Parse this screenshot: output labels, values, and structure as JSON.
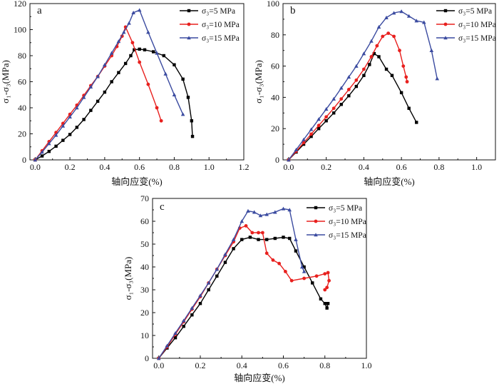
{
  "chart_data": [
    {
      "type": "line",
      "panel_label": "a",
      "xlabel": "轴向应变(%)",
      "ylabel": "σ₁-σ₃(MPa)",
      "xlim": [
        -0.03,
        1.2
      ],
      "ylim": [
        0,
        120
      ],
      "xticks": [
        "0.0",
        "0.2",
        "0.4",
        "0.6",
        "0.8",
        "1.0",
        "1.2"
      ],
      "xtick_values": [
        0,
        0.2,
        0.4,
        0.6,
        0.8,
        1.0,
        1.2
      ],
      "yticks": [
        "0",
        "20",
        "40",
        "60",
        "80",
        "100",
        "120"
      ],
      "ytick_values": [
        0,
        20,
        40,
        60,
        80,
        100,
        120
      ],
      "legend_position": "top-right",
      "series": [
        {
          "name": "σ₃=5 MPa",
          "color": "#000000",
          "marker": "square",
          "x": [
            0.0,
            0.04,
            0.08,
            0.12,
            0.16,
            0.2,
            0.24,
            0.28,
            0.32,
            0.36,
            0.4,
            0.44,
            0.48,
            0.52,
            0.55,
            0.57,
            0.6,
            0.63,
            0.68,
            0.74,
            0.8,
            0.85,
            0.88,
            0.9,
            0.905
          ],
          "y": [
            0,
            3,
            6.5,
            10.5,
            15,
            19.5,
            25,
            31,
            38,
            45,
            52,
            60,
            67,
            74,
            80,
            84.5,
            85,
            84.5,
            83,
            80,
            73,
            62,
            48,
            30,
            18
          ]
        },
        {
          "name": "σ₃=10 MPa",
          "color": "#e8201e",
          "marker": "circle",
          "x": [
            0.0,
            0.04,
            0.08,
            0.12,
            0.16,
            0.2,
            0.24,
            0.28,
            0.32,
            0.36,
            0.4,
            0.44,
            0.47,
            0.5,
            0.52,
            0.56,
            0.6,
            0.65,
            0.7,
            0.725
          ],
          "y": [
            0,
            7,
            14,
            21,
            28,
            35,
            42,
            49.5,
            57,
            64,
            72,
            80,
            87,
            95,
            102,
            90,
            75,
            58,
            40,
            30
          ]
        },
        {
          "name": "σ₃=15 MPa",
          "color": "#3b4ba0",
          "marker": "triangle",
          "x": [
            0.0,
            0.04,
            0.08,
            0.12,
            0.16,
            0.2,
            0.24,
            0.28,
            0.32,
            0.36,
            0.4,
            0.44,
            0.48,
            0.51,
            0.54,
            0.565,
            0.6,
            0.65,
            0.7,
            0.75,
            0.8,
            0.85
          ],
          "y": [
            0,
            6,
            12.5,
            19,
            26,
            33,
            40,
            48,
            56,
            64,
            73,
            82,
            91,
            98,
            105,
            113,
            115,
            98,
            82,
            66,
            50,
            35
          ]
        }
      ]
    },
    {
      "type": "line",
      "panel_label": "b",
      "xlabel": "轴向应变(%)",
      "ylabel": "σ₁-σ₃(MPa)",
      "xlim": [
        -0.03,
        1.1
      ],
      "ylim": [
        0,
        100
      ],
      "xticks": [
        "0.0",
        "0.2",
        "0.4",
        "0.6",
        "0.8",
        "1.0"
      ],
      "xtick_values": [
        0,
        0.2,
        0.4,
        0.6,
        0.8,
        1.0
      ],
      "yticks": [
        "0",
        "20",
        "40",
        "60",
        "80",
        "100"
      ],
      "ytick_values": [
        0,
        20,
        40,
        60,
        80,
        100
      ],
      "legend_position": "top-right",
      "series": [
        {
          "name": "σ₃=5 MPa",
          "color": "#000000",
          "marker": "square",
          "x": [
            0.0,
            0.04,
            0.08,
            0.12,
            0.16,
            0.2,
            0.24,
            0.28,
            0.32,
            0.36,
            0.4,
            0.43,
            0.455,
            0.48,
            0.52,
            0.55,
            0.6,
            0.64,
            0.68
          ],
          "y": [
            0,
            5,
            10,
            15,
            20,
            25,
            30,
            35.5,
            41,
            47,
            54,
            61,
            68,
            66,
            58,
            54,
            43,
            33,
            24
          ]
        },
        {
          "name": "σ₃=10 MPa",
          "color": "#e8201e",
          "marker": "circle",
          "x": [
            0.0,
            0.04,
            0.08,
            0.12,
            0.16,
            0.2,
            0.24,
            0.28,
            0.32,
            0.36,
            0.4,
            0.44,
            0.47,
            0.5,
            0.53,
            0.56,
            0.59,
            0.61,
            0.625,
            0.63
          ],
          "y": [
            0,
            5.5,
            11,
            16.5,
            22,
            27.5,
            33,
            39,
            45,
            51,
            58,
            66,
            73,
            79,
            81,
            79,
            70,
            60,
            53,
            50
          ]
        },
        {
          "name": "σ₃=15 MPa",
          "color": "#3b4ba0",
          "marker": "triangle",
          "x": [
            0.0,
            0.04,
            0.08,
            0.12,
            0.16,
            0.2,
            0.24,
            0.28,
            0.32,
            0.36,
            0.4,
            0.44,
            0.48,
            0.52,
            0.56,
            0.6,
            0.64,
            0.68,
            0.72,
            0.76,
            0.79
          ],
          "y": [
            0,
            6.5,
            13,
            19.5,
            26,
            32.5,
            39,
            46,
            53,
            60,
            68,
            76,
            85,
            91,
            94,
            95,
            92,
            89,
            88,
            70,
            52
          ]
        }
      ]
    },
    {
      "type": "line",
      "panel_label": "c",
      "xlabel": "轴向应变(%)",
      "ylabel": "σ₁-σ₃(MPa)",
      "xlim": [
        -0.03,
        1.0
      ],
      "ylim": [
        0,
        70
      ],
      "xticks": [
        "0.0",
        "0.2",
        "0.4",
        "0.6",
        "0.8",
        "1.0"
      ],
      "xtick_values": [
        0,
        0.2,
        0.4,
        0.6,
        0.8,
        1.0
      ],
      "yticks": [
        "0",
        "10",
        "20",
        "30",
        "40",
        "50",
        "60",
        "70"
      ],
      "ytick_values": [
        0,
        10,
        20,
        30,
        40,
        50,
        60,
        70
      ],
      "legend_position": "top-right",
      "series": [
        {
          "name": "σ₃=5 MPa",
          "color": "#000000",
          "marker": "square",
          "x": [
            0.0,
            0.04,
            0.08,
            0.12,
            0.16,
            0.2,
            0.24,
            0.28,
            0.32,
            0.36,
            0.4,
            0.44,
            0.48,
            0.52,
            0.56,
            0.6,
            0.63,
            0.66,
            0.7,
            0.74,
            0.78,
            0.8,
            0.81,
            0.815
          ],
          "y": [
            0,
            4.5,
            9,
            14,
            19,
            24,
            30,
            36,
            42,
            48,
            52,
            53,
            52,
            52,
            52.5,
            53,
            52.5,
            47,
            40,
            33,
            26,
            24,
            22,
            24
          ]
        },
        {
          "name": "σ₃=10 MPa",
          "color": "#e8201e",
          "marker": "circle",
          "x": [
            0.0,
            0.04,
            0.08,
            0.12,
            0.16,
            0.2,
            0.24,
            0.28,
            0.32,
            0.36,
            0.39,
            0.42,
            0.45,
            0.48,
            0.5,
            0.52,
            0.55,
            0.58,
            0.61,
            0.64,
            0.7,
            0.76,
            0.8,
            0.815,
            0.82,
            0.81,
            0.8
          ],
          "y": [
            0,
            5,
            10.5,
            16,
            21.5,
            27,
            33,
            39,
            45,
            51,
            57,
            58,
            55,
            55,
            55,
            46,
            43,
            41.5,
            38,
            34,
            35,
            36,
            37,
            37.5,
            34,
            31,
            30
          ]
        },
        {
          "name": "σ₃=15 MPa",
          "color": "#3b4ba0",
          "marker": "triangle",
          "x": [
            0.0,
            0.04,
            0.08,
            0.12,
            0.16,
            0.2,
            0.24,
            0.28,
            0.32,
            0.36,
            0.4,
            0.43,
            0.46,
            0.49,
            0.52,
            0.56,
            0.6,
            0.63,
            0.66,
            0.69,
            0.7
          ],
          "y": [
            0,
            5.5,
            11,
            16.5,
            22,
            27.5,
            33,
            39,
            45.5,
            52,
            60,
            64.5,
            64,
            62.5,
            63,
            64,
            65.5,
            65,
            52,
            40,
            38
          ]
        }
      ]
    }
  ]
}
